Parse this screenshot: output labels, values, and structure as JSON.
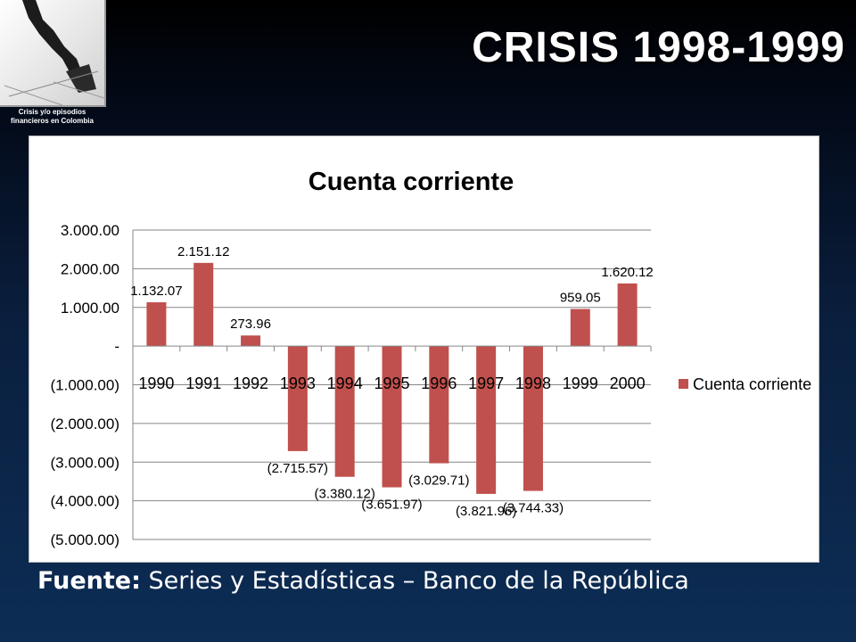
{
  "header": {
    "title": "CRISIS 1998-1999",
    "logo_caption_line1": "Crisis y/o episodios",
    "logo_caption_line2": "financieros en Colombia"
  },
  "footer": {
    "source_label": "Fuente:",
    "source_text": "Series y Estadísticas – Banco de la República"
  },
  "colors": {
    "bar": "#c0504d",
    "axis": "#868686",
    "grid": "#868686"
  },
  "chart_data": {
    "type": "bar",
    "title": "Cuenta corriente",
    "xlabel": "",
    "ylabel": "",
    "categories": [
      "1990",
      "1991",
      "1992",
      "1993",
      "1994",
      "1995",
      "1996",
      "1997",
      "1998",
      "1999",
      "2000"
    ],
    "series": [
      {
        "name": "Cuenta corriente",
        "values": [
          1132.07,
          2151.12,
          273.96,
          -2715.57,
          -3380.12,
          -3651.97,
          -3029.71,
          -3821.96,
          -3744.33,
          959.05,
          1620.12
        ],
        "data_labels": [
          "1.132.07",
          "2.151.12",
          "273.96",
          "(2.715.57)",
          "(3.380.12)",
          "(3.651.97)",
          "(3.029.71)",
          "(3.821.96)",
          "(3.744.33)",
          "959.05",
          "1.620.12"
        ]
      }
    ],
    "ylim": [
      -5000,
      3000
    ],
    "yticks": [
      3000,
      2000,
      1000,
      0,
      -1000,
      -2000,
      -3000,
      -4000,
      -5000
    ],
    "ytick_labels": [
      "3.000.00",
      "2.000.00",
      "1.000.00",
      "-",
      "(1.000.00)",
      "(2.000.00)",
      "(3.000.00)",
      "(4.000.00)",
      "(5.000.00)"
    ],
    "grid": true,
    "legend_position": "right"
  }
}
